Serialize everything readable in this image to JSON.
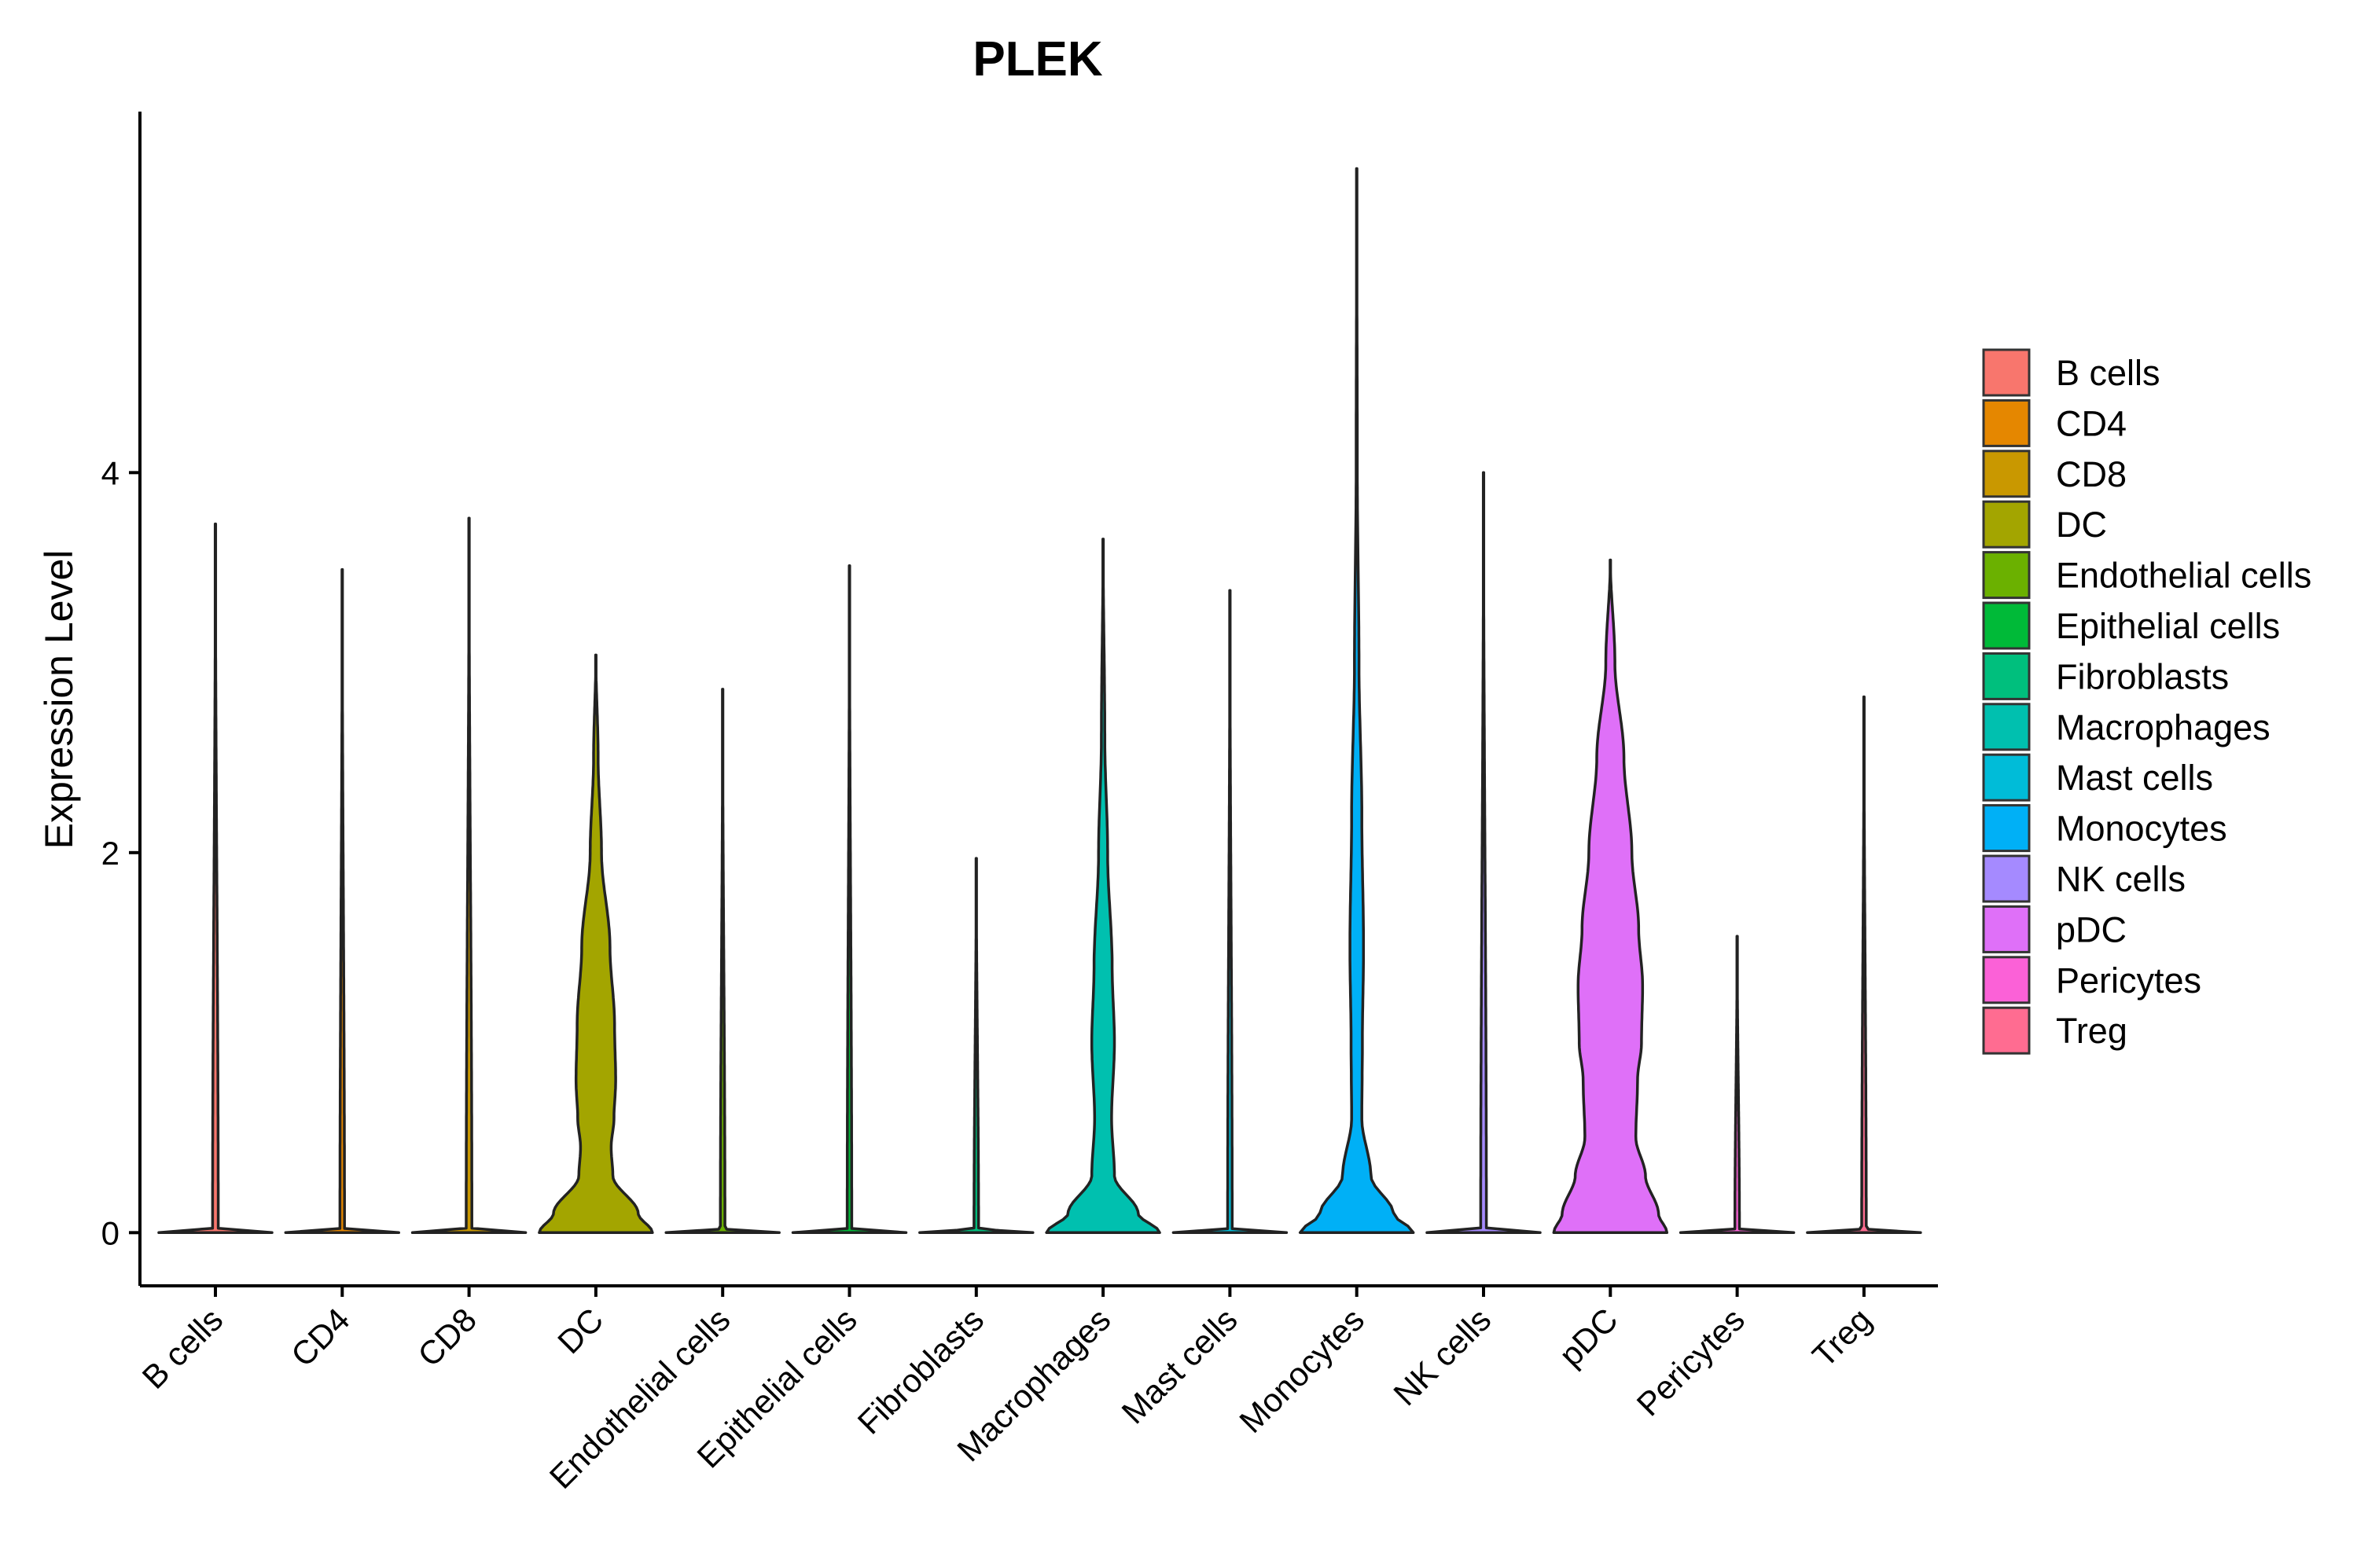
{
  "chart_data": {
    "type": "violin",
    "title": "PLEK",
    "xlabel": "",
    "ylabel": "Expression Level",
    "ylim": [
      -0.28,
      5.9
    ],
    "yticks": [
      0,
      2,
      4
    ],
    "grid": false,
    "legend_position": "right",
    "categories": [
      "B cells",
      "CD4",
      "CD8",
      "DC",
      "Endothelial cells",
      "Epithelial cells",
      "Fibroblasts",
      "Macrophages",
      "Mast cells",
      "Monocytes",
      "NK cells",
      "pDC",
      "Pericytes",
      "Treg"
    ],
    "colors": [
      "#F8766D",
      "#E58700",
      "#C99800",
      "#A3A500",
      "#6BB100",
      "#00BA38",
      "#00BF7D",
      "#00C0AF",
      "#00BCD8",
      "#00B0F6",
      "#A58AFF",
      "#DF70F8",
      "#FB61D7",
      "#FF6C91"
    ],
    "series": [
      {
        "name": "B cells",
        "max": 3.73,
        "profile": [
          [
            0,
            1.0
          ],
          [
            0.02,
            0.05
          ],
          [
            3.73,
            0.0
          ]
        ]
      },
      {
        "name": "CD4",
        "max": 3.49,
        "profile": [
          [
            0,
            1.0
          ],
          [
            0.02,
            0.04
          ],
          [
            3.49,
            0.0
          ]
        ]
      },
      {
        "name": "CD8",
        "max": 3.76,
        "profile": [
          [
            0,
            1.0
          ],
          [
            0.02,
            0.05
          ],
          [
            3.76,
            0.0
          ]
        ]
      },
      {
        "name": "DC",
        "max": 3.04,
        "profile": [
          [
            0,
            1.0
          ],
          [
            0.1,
            0.75
          ],
          [
            0.3,
            0.3
          ],
          [
            0.45,
            0.27
          ],
          [
            0.6,
            0.32
          ],
          [
            0.8,
            0.35
          ],
          [
            1.1,
            0.33
          ],
          [
            1.5,
            0.25
          ],
          [
            2.0,
            0.1
          ],
          [
            2.5,
            0.04
          ],
          [
            3.04,
            0.0
          ]
        ]
      },
      {
        "name": "Endothelial cells",
        "max": 2.86,
        "profile": [
          [
            0,
            1.0
          ],
          [
            0.02,
            0.04
          ],
          [
            2.86,
            0.0
          ]
        ]
      },
      {
        "name": "Epithelial cells",
        "max": 3.51,
        "profile": [
          [
            0,
            1.0
          ],
          [
            0.02,
            0.04
          ],
          [
            3.51,
            0.0
          ]
        ]
      },
      {
        "name": "Fibroblasts",
        "max": 1.97,
        "profile": [
          [
            0,
            1.0
          ],
          [
            0.02,
            0.04
          ],
          [
            1.97,
            0.0
          ]
        ]
      },
      {
        "name": "Macrophages",
        "max": 3.65,
        "profile": [
          [
            0,
            1.0
          ],
          [
            0.1,
            0.62
          ],
          [
            0.3,
            0.2
          ],
          [
            0.6,
            0.15
          ],
          [
            1.0,
            0.2
          ],
          [
            1.4,
            0.16
          ],
          [
            2.0,
            0.08
          ],
          [
            2.6,
            0.03
          ],
          [
            3.65,
            0.0
          ]
        ]
      },
      {
        "name": "Mast cells",
        "max": 3.38,
        "profile": [
          [
            0,
            1.0
          ],
          [
            0.02,
            0.04
          ],
          [
            3.38,
            0.0
          ]
        ]
      },
      {
        "name": "Monocytes",
        "max": 5.6,
        "profile": [
          [
            0,
            1.0
          ],
          [
            0.1,
            0.65
          ],
          [
            0.3,
            0.25
          ],
          [
            0.6,
            0.09
          ],
          [
            1.0,
            0.1
          ],
          [
            1.5,
            0.12
          ],
          [
            2.2,
            0.09
          ],
          [
            3.0,
            0.04
          ],
          [
            4.0,
            0.01
          ],
          [
            5.6,
            0.0
          ]
        ]
      },
      {
        "name": "NK cells",
        "max": 4.0,
        "profile": [
          [
            0,
            1.0
          ],
          [
            0.02,
            0.05
          ],
          [
            4.0,
            0.0
          ]
        ]
      },
      {
        "name": "pDC",
        "max": 3.54,
        "profile": [
          [
            0,
            1.0
          ],
          [
            0.1,
            0.85
          ],
          [
            0.3,
            0.62
          ],
          [
            0.5,
            0.45
          ],
          [
            0.8,
            0.48
          ],
          [
            1.0,
            0.55
          ],
          [
            1.3,
            0.57
          ],
          [
            1.6,
            0.5
          ],
          [
            2.0,
            0.38
          ],
          [
            2.5,
            0.24
          ],
          [
            3.0,
            0.08
          ],
          [
            3.54,
            0.0
          ]
        ]
      },
      {
        "name": "Pericytes",
        "max": 1.56,
        "profile": [
          [
            0,
            1.0
          ],
          [
            0.02,
            0.04
          ],
          [
            1.56,
            0.0
          ]
        ]
      },
      {
        "name": "Treg",
        "max": 2.82,
        "profile": [
          [
            0,
            1.0
          ],
          [
            0.02,
            0.04
          ],
          [
            2.82,
            0.0
          ]
        ]
      }
    ]
  }
}
